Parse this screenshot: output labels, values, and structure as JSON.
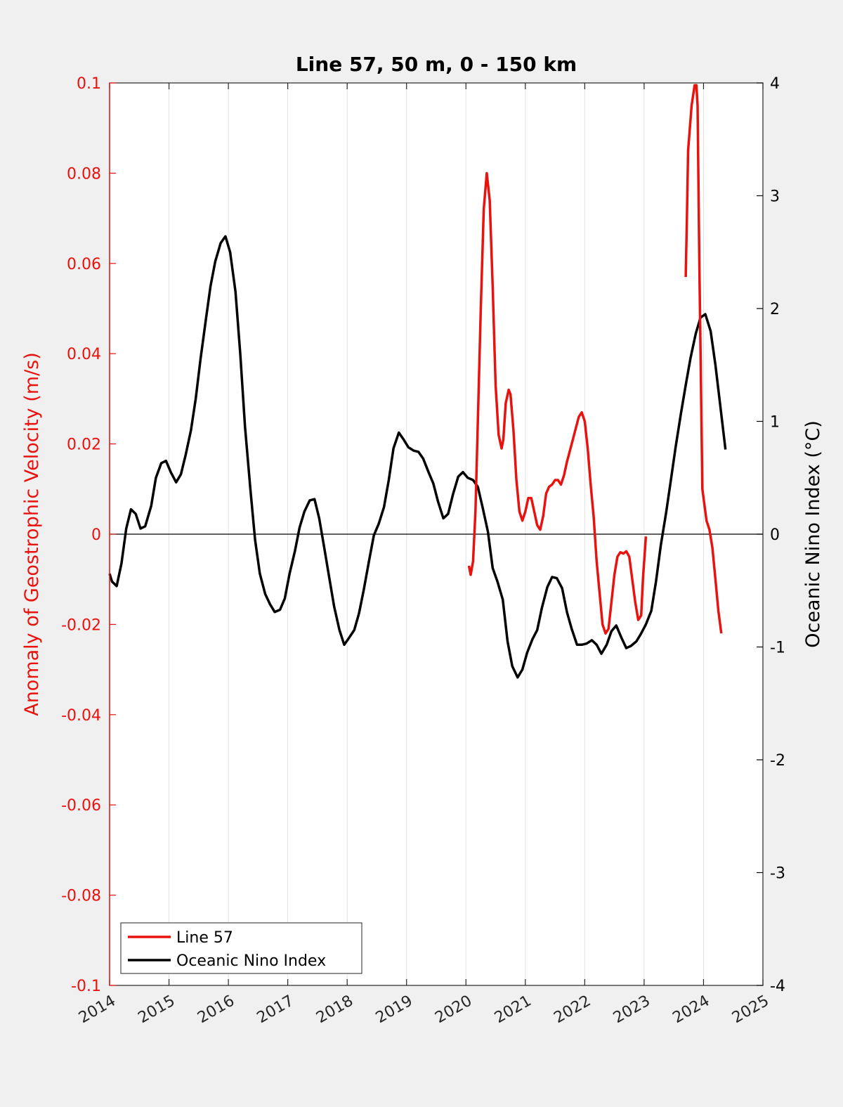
{
  "chart_data": {
    "type": "line",
    "title": "Line 57, 50 m, 0 - 150 km",
    "xlabel": "",
    "ylabel_left": "Anomaly of Geostrophic Velocity (m/s)",
    "ylabel_right": "Oceanic Nino Index (°C)",
    "xlim": [
      2014,
      2025
    ],
    "ylim_left": [
      -0.1,
      0.1
    ],
    "ylim_right": [
      -4,
      4
    ],
    "x_ticks": [
      "2014",
      "2015",
      "2016",
      "2017",
      "2018",
      "2019",
      "2020",
      "2021",
      "2022",
      "2023",
      "2024",
      "2025"
    ],
    "y_left_ticks": [
      "-0.1",
      "-0.08",
      "-0.06",
      "-0.04",
      "-0.02",
      "0",
      "0.02",
      "0.04",
      "0.06",
      "0.08",
      "0.1"
    ],
    "y_right_ticks": [
      "-4",
      "-3",
      "-2",
      "-1",
      "0",
      "1",
      "2",
      "3",
      "4"
    ],
    "grid": "vertical",
    "zero_line": true,
    "legend_position": "bottom-left",
    "colors": {
      "line57": "#e8120e",
      "oni": "#000000",
      "left_axis": "#e8120e",
      "right_axis": "#000000"
    },
    "series": [
      {
        "name": "Line 57",
        "axis": "left",
        "segments": [
          [
            [
              2020.05,
              -0.007
            ],
            [
              2020.08,
              -0.009
            ],
            [
              2020.12,
              -0.006
            ],
            [
              2020.16,
              0.005
            ],
            [
              2020.2,
              0.025
            ],
            [
              2020.25,
              0.05
            ],
            [
              2020.3,
              0.072
            ],
            [
              2020.35,
              0.08
            ],
            [
              2020.4,
              0.074
            ],
            [
              2020.45,
              0.055
            ],
            [
              2020.5,
              0.033
            ],
            [
              2020.55,
              0.022
            ],
            [
              2020.6,
              0.019
            ],
            [
              2020.63,
              0.021
            ],
            [
              2020.67,
              0.029
            ],
            [
              2020.72,
              0.032
            ],
            [
              2020.75,
              0.031
            ],
            [
              2020.8,
              0.023
            ],
            [
              2020.85,
              0.012
            ],
            [
              2020.9,
              0.005
            ],
            [
              2020.95,
              0.003
            ],
            [
              2021.0,
              0.005
            ],
            [
              2021.05,
              0.008
            ],
            [
              2021.1,
              0.008
            ],
            [
              2021.15,
              0.005
            ],
            [
              2021.2,
              0.002
            ],
            [
              2021.25,
              0.001
            ],
            [
              2021.3,
              0.004
            ],
            [
              2021.35,
              0.009
            ],
            [
              2021.4,
              0.0105
            ],
            [
              2021.45,
              0.011
            ],
            [
              2021.5,
              0.012
            ],
            [
              2021.55,
              0.012
            ],
            [
              2021.6,
              0.011
            ],
            [
              2021.65,
              0.013
            ],
            [
              2021.7,
              0.016
            ],
            [
              2021.8,
              0.021
            ],
            [
              2021.9,
              0.026
            ],
            [
              2021.95,
              0.027
            ],
            [
              2022.0,
              0.025
            ],
            [
              2022.05,
              0.019
            ],
            [
              2022.1,
              0.011
            ],
            [
              2022.15,
              0.004
            ],
            [
              2022.2,
              -0.006
            ],
            [
              2022.25,
              -0.013
            ],
            [
              2022.3,
              -0.02
            ],
            [
              2022.35,
              -0.022
            ],
            [
              2022.4,
              -0.021
            ],
            [
              2022.45,
              -0.015
            ],
            [
              2022.5,
              -0.009
            ],
            [
              2022.55,
              -0.005
            ],
            [
              2022.6,
              -0.004
            ],
            [
              2022.65,
              -0.0043
            ],
            [
              2022.7,
              -0.0038
            ],
            [
              2022.75,
              -0.005
            ],
            [
              2022.8,
              -0.01
            ],
            [
              2022.85,
              -0.015
            ],
            [
              2022.9,
              -0.019
            ],
            [
              2022.95,
              -0.018
            ],
            [
              2022.98,
              -0.01
            ],
            [
              2023.03,
              -0.0005
            ]
          ],
          [
            [
              2023.7,
              0.057
            ],
            [
              2023.72,
              0.07
            ],
            [
              2023.74,
              0.085
            ],
            [
              2023.77,
              0.09
            ],
            [
              2023.8,
              0.095
            ],
            [
              2023.85,
              0.0995
            ],
            [
              2023.88,
              0.0995
            ],
            [
              2023.9,
              0.095
            ],
            [
              2023.93,
              0.06
            ],
            [
              2023.96,
              0.03
            ],
            [
              2023.98,
              0.01
            ],
            [
              2024.0,
              0.008
            ],
            [
              2024.05,
              0.003
            ],
            [
              2024.1,
              0.001
            ],
            [
              2024.15,
              -0.003
            ],
            [
              2024.2,
              -0.01
            ],
            [
              2024.25,
              -0.017
            ],
            [
              2024.3,
              -0.022
            ]
          ]
        ]
      },
      {
        "name": "Oceanic Nino Index",
        "axis": "right",
        "points": [
          [
            2014.0,
            -0.35
          ],
          [
            2014.04,
            -0.42
          ],
          [
            2014.12,
            -0.46
          ],
          [
            2014.2,
            -0.26
          ],
          [
            2014.28,
            0.05
          ],
          [
            2014.36,
            0.22
          ],
          [
            2014.44,
            0.18
          ],
          [
            2014.52,
            0.05
          ],
          [
            2014.6,
            0.07
          ],
          [
            2014.7,
            0.25
          ],
          [
            2014.78,
            0.5
          ],
          [
            2014.87,
            0.63
          ],
          [
            2014.95,
            0.65
          ],
          [
            2015.03,
            0.55
          ],
          [
            2015.12,
            0.46
          ],
          [
            2015.2,
            0.53
          ],
          [
            2015.28,
            0.7
          ],
          [
            2015.37,
            0.92
          ],
          [
            2015.45,
            1.2
          ],
          [
            2015.53,
            1.55
          ],
          [
            2015.62,
            1.9
          ],
          [
            2015.7,
            2.2
          ],
          [
            2015.78,
            2.42
          ],
          [
            2015.87,
            2.58
          ],
          [
            2015.95,
            2.64
          ],
          [
            2016.03,
            2.5
          ],
          [
            2016.12,
            2.15
          ],
          [
            2016.2,
            1.6
          ],
          [
            2016.28,
            0.95
          ],
          [
            2016.37,
            0.4
          ],
          [
            2016.45,
            -0.05
          ],
          [
            2016.53,
            -0.35
          ],
          [
            2016.62,
            -0.53
          ],
          [
            2016.7,
            -0.62
          ],
          [
            2016.78,
            -0.69
          ],
          [
            2016.87,
            -0.67
          ],
          [
            2016.95,
            -0.57
          ],
          [
            2017.03,
            -0.35
          ],
          [
            2017.12,
            -0.15
          ],
          [
            2017.2,
            0.06
          ],
          [
            2017.28,
            0.2
          ],
          [
            2017.37,
            0.3
          ],
          [
            2017.45,
            0.31
          ],
          [
            2017.53,
            0.14
          ],
          [
            2017.62,
            -0.14
          ],
          [
            2017.7,
            -0.39
          ],
          [
            2017.78,
            -0.64
          ],
          [
            2017.87,
            -0.85
          ],
          [
            2017.95,
            -0.98
          ],
          [
            2018.03,
            -0.92
          ],
          [
            2018.12,
            -0.85
          ],
          [
            2018.2,
            -0.7
          ],
          [
            2018.28,
            -0.49
          ],
          [
            2018.37,
            -0.23
          ],
          [
            2018.45,
            -0.01
          ],
          [
            2018.53,
            0.09
          ],
          [
            2018.62,
            0.24
          ],
          [
            2018.7,
            0.48
          ],
          [
            2018.78,
            0.76
          ],
          [
            2018.87,
            0.9
          ],
          [
            2018.95,
            0.84
          ],
          [
            2019.03,
            0.77
          ],
          [
            2019.12,
            0.74
          ],
          [
            2019.2,
            0.73
          ],
          [
            2019.28,
            0.67
          ],
          [
            2019.37,
            0.55
          ],
          [
            2019.45,
            0.45
          ],
          [
            2019.53,
            0.29
          ],
          [
            2019.62,
            0.14
          ],
          [
            2019.7,
            0.18
          ],
          [
            2019.78,
            0.35
          ],
          [
            2019.87,
            0.51
          ],
          [
            2019.95,
            0.55
          ],
          [
            2020.03,
            0.5
          ],
          [
            2020.12,
            0.48
          ],
          [
            2020.2,
            0.42
          ],
          [
            2020.28,
            0.24
          ],
          [
            2020.37,
            0.02
          ],
          [
            2020.45,
            -0.3
          ],
          [
            2020.53,
            -0.42
          ],
          [
            2020.62,
            -0.58
          ],
          [
            2020.7,
            -0.95
          ],
          [
            2020.78,
            -1.17
          ],
          [
            2020.87,
            -1.27
          ],
          [
            2020.95,
            -1.2
          ],
          [
            2021.03,
            -1.05
          ],
          [
            2021.12,
            -0.93
          ],
          [
            2021.2,
            -0.85
          ],
          [
            2021.28,
            -0.65
          ],
          [
            2021.37,
            -0.47
          ],
          [
            2021.45,
            -0.38
          ],
          [
            2021.53,
            -0.39
          ],
          [
            2021.62,
            -0.48
          ],
          [
            2021.7,
            -0.69
          ],
          [
            2021.78,
            -0.84
          ],
          [
            2021.87,
            -0.98
          ],
          [
            2021.95,
            -0.98
          ],
          [
            2022.03,
            -0.97
          ],
          [
            2022.12,
            -0.94
          ],
          [
            2022.2,
            -0.98
          ],
          [
            2022.28,
            -1.06
          ],
          [
            2022.37,
            -0.98
          ],
          [
            2022.45,
            -0.86
          ],
          [
            2022.53,
            -0.81
          ],
          [
            2022.62,
            -0.92
          ],
          [
            2022.7,
            -1.01
          ],
          [
            2022.78,
            -0.99
          ],
          [
            2022.87,
            -0.95
          ],
          [
            2022.95,
            -0.88
          ],
          [
            2023.03,
            -0.8
          ],
          [
            2023.12,
            -0.68
          ],
          [
            2023.2,
            -0.42
          ],
          [
            2023.28,
            -0.1
          ],
          [
            2023.37,
            0.19
          ],
          [
            2023.45,
            0.48
          ],
          [
            2023.53,
            0.77
          ],
          [
            2023.62,
            1.07
          ],
          [
            2023.7,
            1.32
          ],
          [
            2023.78,
            1.56
          ],
          [
            2023.87,
            1.78
          ],
          [
            2023.95,
            1.92
          ],
          [
            2024.03,
            1.95
          ],
          [
            2024.12,
            1.8
          ],
          [
            2024.2,
            1.5
          ],
          [
            2024.28,
            1.15
          ],
          [
            2024.37,
            0.75
          ]
        ]
      }
    ]
  }
}
